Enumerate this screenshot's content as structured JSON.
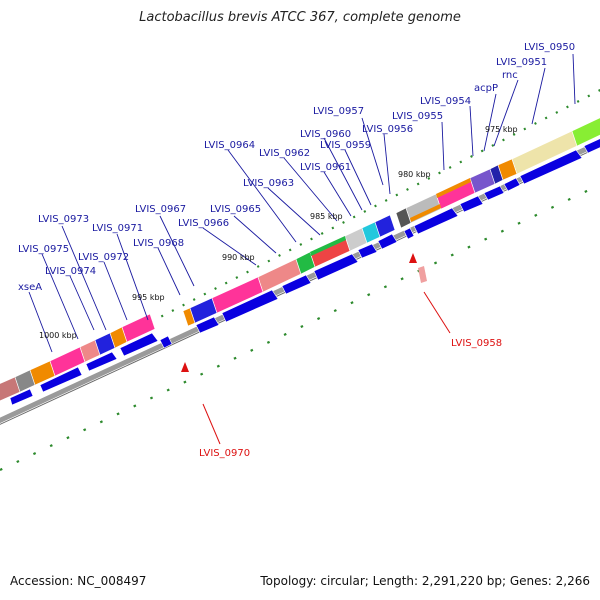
{
  "title": "Lactobacillus brevis ATCC 367, complete genome",
  "footer": {
    "accession": "Accession: NC_008497",
    "summary": "Topology: circular; Length: 2,291,220 bp; Genes: 2,266"
  },
  "colors": {
    "gene_blue": "#0a00e0",
    "label_blue": "#1a1aa0",
    "label_red": "#dd1111",
    "tick_green": "#2d8a2d",
    "backbone_grey": "#9a9a9a"
  },
  "kbp_ticks": [
    "1000 kbp",
    "995 kbp",
    "990 kbp",
    "985 kbp",
    "980 kbp",
    "975 kbp"
  ],
  "gene_labels": [
    "LVIS_0950",
    "LVIS_0951",
    "rnc",
    "acpP",
    "LVIS_0954",
    "LVIS_0955",
    "LVIS_0956",
    "LVIS_0957",
    "LVIS_0959",
    "LVIS_0960",
    "LVIS_0961",
    "LVIS_0962",
    "LVIS_0963",
    "LVIS_0964",
    "LVIS_0965",
    "LVIS_0966",
    "LVIS_0967",
    "LVIS_0968",
    "LVIS_0971",
    "LVIS_0972",
    "LVIS_0973",
    "LVIS_0974",
    "LVIS_0975",
    "xseA"
  ],
  "highlight_labels": [
    "LVIS_0958",
    "LVIS_0970"
  ]
}
